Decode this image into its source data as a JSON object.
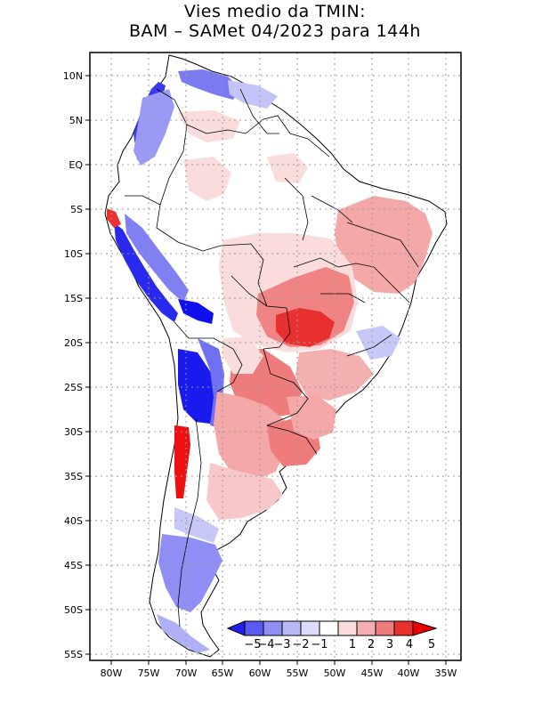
{
  "title": {
    "line1": "Vies medio da TMIN:",
    "line2": "BAM – SAMet 04/2023  para 144h"
  },
  "axes": {
    "lat_labels": [
      "10N",
      "5N",
      "EQ",
      "5S",
      "10S",
      "15S",
      "20S",
      "25S",
      "30S",
      "35S",
      "40S",
      "45S",
      "50S",
      "55S"
    ],
    "lon_labels": [
      "80W",
      "75W",
      "70W",
      "65W",
      "60W",
      "55W",
      "50W",
      "45W",
      "40W",
      "35W"
    ],
    "lat_range": [
      -56,
      13
    ],
    "lon_range": [
      -83.5,
      -34
    ]
  },
  "colorbar": {
    "labels": [
      "−5",
      "−4",
      "−3",
      "−2",
      "−1",
      "1",
      "2",
      "3",
      "4",
      "5"
    ],
    "colors": [
      "#2020f0",
      "#5a5af2",
      "#8e8ef4",
      "#b8b8f6",
      "#dcdcfa",
      "#ffffff",
      "#fadcdc",
      "#f4b0b0",
      "#ee7c7c",
      "#e83030",
      "#ee0000"
    ]
  },
  "colors": {
    "land_default": "#ffffff",
    "grid": "#9a9a9a"
  }
}
